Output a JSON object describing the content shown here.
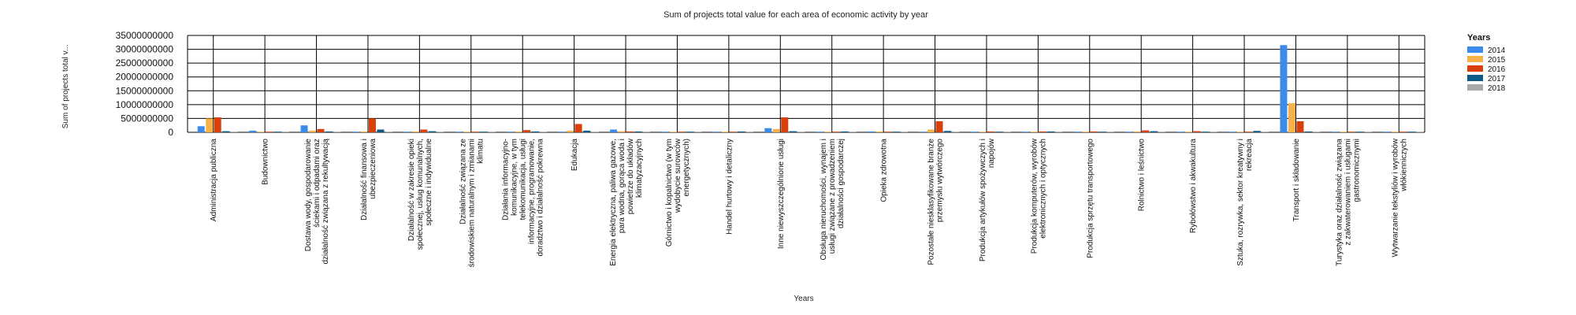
{
  "chart_data": {
    "type": "bar",
    "title": "Sum of projects total value for each area of economic activity by year",
    "xlabel": "Years",
    "ylabel": "Sum of projects total v...",
    "ylim": [
      0,
      35000000000
    ],
    "yticks": [
      0,
      5000000000,
      10000000000,
      15000000000,
      20000000000,
      25000000000,
      30000000000,
      35000000000
    ],
    "ytick_labels": [
      "0",
      "5000000000",
      "10000000000",
      "15000000000",
      "20000000000",
      "25000000000",
      "30000000000",
      "35000000000"
    ],
    "grid": true,
    "legend": {
      "title": "Years",
      "placement": "top-right"
    },
    "categories": [
      "Administracja publiczna",
      "Budownictwo",
      "Dostawa wody, gospodarowanie ściekami i odpadami oraz działalność związana z rekultywacją",
      "Działalność finansowa i ubezpieczeniowa",
      "Działalność w zakresie opieki społecznej, usług komunalnych, społeczne i indywidualne",
      "Działalność związana ze środowiskiem naturalnym i zmianami klimatu",
      "Działania informacyjno-komunikacyjne, w tym telekomunikacja, usługi informacyjne, programowanie, doradztwo i działalność pokrewna",
      "Edukacja",
      "Energia elektryczna, paliwa gazowe, para wodna, gorąca woda i powietrze do układów klimatyzacyjnych",
      "Górnictwo i kopalnictwo (w tym wydobycie surowców energetycznych)",
      "Handel hurtowy i detaliczny",
      "Inne niewyszczególnione usługi",
      "Obsługa nieruchomości, wynajem i usługi związane z prowadzeniem działalności gospodarczej",
      "Opieka zdrowotna",
      "Pozostałe niesklasyfikowane branże przemysłu wytwórczego",
      "Produkcja artykułów spożywczych i napojów",
      "Produkcja komputerów, wyrobów elektronicznych i optycznych",
      "Produkcja sprzętu transportowego",
      "Rolnictwo i leśnictwo",
      "Rybołówstwo i akwakultura",
      "Sztuka, rozrywka, sektor kreatywny i rekreacja",
      "Transport i składowanie",
      "Turystyka oraz działalność związana z zakwaterowaniem i usługami gastronomicznymi",
      "Wytwarzanie tekstyliów i wyrobów włókienniczych"
    ],
    "category_lines": [
      [
        "Administracja publiczna"
      ],
      [
        "Budownictwo"
      ],
      [
        "Dostawa wody, gospodarowanie",
        "ściekami i odpadami oraz",
        "działalność związana z rekultywacją"
      ],
      [
        "Działalność finansowa i",
        "ubezpieczeniowa"
      ],
      [
        "Działalność w zakresie opieki",
        "społecznej, usług komunalnych,",
        "społeczne i indywidualne"
      ],
      [
        "Działalność związana ze",
        "środowiskiem naturalnym i zmianami",
        "klimatu"
      ],
      [
        "Działania informacyjno-",
        "komunikacyjne, w tym",
        "telekomunikacja, usługi",
        "informacyjne, programowanie,",
        "doradztwo i działalność pokrewna"
      ],
      [
        "Edukacja"
      ],
      [
        "Energia elektryczna, paliwa gazowe,",
        "para wodna, gorąca woda i",
        "powietrze do układów",
        "klimatyzacyjnych"
      ],
      [
        "Górnictwo i kopalnictwo (w tym",
        "wydobycie surowców",
        "energetycznych)"
      ],
      [
        "Handel hurtowy i detaliczny"
      ],
      [
        "Inne niewyszczególnione usługi"
      ],
      [
        "Obsługa nieruchomości, wynajem i",
        "usługi związane z prowadzeniem",
        "działalności gospodarczej"
      ],
      [
        "Opieka zdrowotna"
      ],
      [
        "Pozostałe niesklasyfikowane branże",
        "przemysłu wytwórczego"
      ],
      [
        "Produkcja artykułów spożywczych i",
        "napojów"
      ],
      [
        "Produkcja komputerów, wyrobów",
        "elektronicznych i optycznych"
      ],
      [
        "Produkcja sprzętu transportowego"
      ],
      [
        "Rolnictwo i leśnictwo"
      ],
      [
        "Rybołówstwo i akwakultura"
      ],
      [
        "Sztuka, rozrywka, sektor kreatywny i",
        "rekreacja"
      ],
      [
        "Transport i składowanie"
      ],
      [
        "Turystyka oraz działalność związana",
        "z zakwaterowaniem i usługami",
        "gastronomicznymi"
      ],
      [
        "Wytwarzanie tekstyliów i wyrobów",
        "włókienniczych"
      ]
    ],
    "series": [
      {
        "name": "2014",
        "color": "#3c8bea",
        "values": [
          2200000000,
          600000000,
          2500000000,
          200000000,
          200000000,
          150000000,
          100000000,
          200000000,
          1000000000,
          100000000,
          100000000,
          1500000000,
          150000000,
          300000000,
          200000000,
          100000000,
          100000000,
          50000000,
          200000000,
          50000000,
          200000000,
          31500000000,
          50000000,
          50000000
        ]
      },
      {
        "name": "2015",
        "color": "#f7b24a",
        "values": [
          5000000000,
          200000000,
          600000000,
          300000000,
          300000000,
          100000000,
          300000000,
          600000000,
          400000000,
          50000000,
          200000000,
          1200000000,
          100000000,
          300000000,
          1000000000,
          200000000,
          200000000,
          100000000,
          300000000,
          100000000,
          200000000,
          10500000000,
          100000000,
          50000000
        ]
      },
      {
        "name": "2016",
        "color": "#d8400c",
        "values": [
          5400000000,
          100000000,
          1200000000,
          5000000000,
          1000000000,
          100000000,
          800000000,
          3000000000,
          300000000,
          100000000,
          200000000,
          5400000000,
          200000000,
          200000000,
          4000000000,
          300000000,
          300000000,
          300000000,
          700000000,
          400000000,
          100000000,
          4000000000,
          200000000,
          100000000
        ]
      },
      {
        "name": "2017",
        "color": "#0c5a87",
        "values": [
          400000000,
          200000000,
          300000000,
          1000000000,
          400000000,
          200000000,
          300000000,
          600000000,
          300000000,
          100000000,
          300000000,
          400000000,
          300000000,
          100000000,
          500000000,
          100000000,
          300000000,
          100000000,
          400000000,
          100000000,
          500000000,
          300000000,
          200000000,
          100000000
        ]
      },
      {
        "name": "2018",
        "color": "#a9a9a9",
        "values": [
          100000000,
          50000000,
          50000000,
          100000000,
          100000000,
          50000000,
          100000000,
          100000000,
          50000000,
          50000000,
          50000000,
          100000000,
          50000000,
          50000000,
          100000000,
          50000000,
          50000000,
          50000000,
          100000000,
          50000000,
          100000000,
          50000000,
          50000000,
          50000000
        ]
      }
    ]
  }
}
